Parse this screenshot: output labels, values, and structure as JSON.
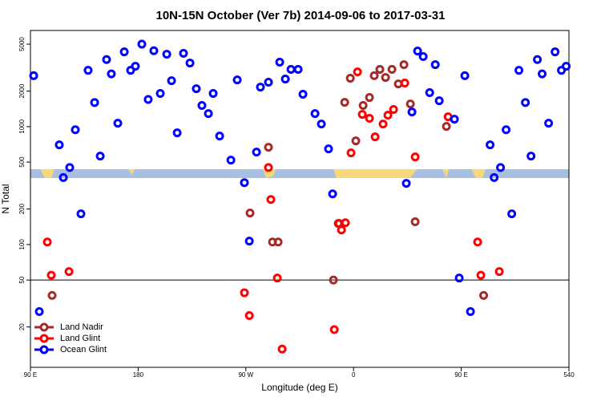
{
  "chart_data": {
    "type": "scatter",
    "title": "10N-15N October (Ver 7b)   2014-09-06 to 2017-03-31",
    "x_label": "Longitude (deg E)",
    "y_label": "N Total",
    "xlim": [
      90,
      540
    ],
    "xticks": [
      {
        "value": 90,
        "label": "90 E"
      },
      180,
      {
        "value": 270,
        "label": "90 W"
      },
      {
        "value": 360,
        "label": "0"
      },
      {
        "value": 450,
        "label": "90 E"
      },
      540
    ],
    "ylim": [
      9.1,
      6530
    ],
    "log_y": true,
    "yticks": [
      20,
      50,
      100,
      200,
      500,
      1000,
      2000,
      5000
    ],
    "hline": 50,
    "legend": "lower left",
    "series": [
      {
        "name": "Land Nadir",
        "color": "#a52a2a",
        "x": [
          108.1,
          273.5,
          288.9,
          292.3,
          297.0,
          343.2,
          347.2,
          352.6,
          357.3,
          361.9,
          368.0,
          373.3,
          377.3,
          382.0,
          386.7,
          392.1,
          397.4,
          402.1,
          407.5,
          411.5,
          437.6,
          468.7
        ],
        "values": [
          37,
          185,
          668,
          105,
          105,
          50,
          151,
          1606,
          2570,
          757,
          1510,
          1765,
          2700,
          3055,
          2610,
          3055,
          2300,
          3350,
          1557,
          156,
          1004,
          37
        ]
      },
      {
        "name": "Land Glint",
        "color": "#ff0000",
        "x": [
          104.1,
          107.4,
          122.2,
          268.8,
          272.9,
          288.9,
          290.9,
          296.3,
          300.3,
          343.9,
          347.9,
          349.9,
          353.2,
          357.9,
          363.3,
          367.3,
          373.3,
          378.0,
          384.7,
          388.7,
          393.4,
          402.8,
          411.5,
          439.0,
          463.7,
          466.4,
          481.8
        ],
        "values": [
          105,
          55,
          59,
          39,
          25,
          450,
          241,
          52,
          13,
          19,
          151,
          133,
          153,
          599,
          2910,
          1270,
          1175,
          819,
          1052,
          1250,
          1396,
          2340,
          553,
          1211,
          105,
          55,
          59
        ]
      },
      {
        "name": "Ocean Glint",
        "color": "#0000ff",
        "x": [
          92.7,
          97.4,
          114.1,
          117.5,
          122.8,
          127.5,
          132.2,
          138.2,
          143.6,
          148.3,
          153.6,
          157.6,
          163.0,
          168.4,
          173.7,
          177.7,
          183.1,
          188.4,
          193.1,
          198.5,
          203.9,
          207.9,
          212.6,
          217.9,
          223.3,
          228.6,
          233.3,
          238.7,
          242.7,
          248.1,
          257.5,
          262.8,
          268.8,
          272.9,
          278.9,
          282.2,
          288.9,
          298.3,
          303.0,
          307.7,
          313.7,
          317.7,
          327.8,
          333.1,
          339.1,
          342.5,
          404.1,
          408.8,
          413.5,
          418.2,
          423.6,
          428.3,
          431.6,
          444.3,
          448.3,
          453.0,
          457.7,
          474.1,
          477.5,
          482.8,
          487.5,
          492.2,
          498.2,
          503.6,
          508.3,
          513.6,
          517.6,
          523.0,
          528.4,
          533.7,
          537.7
        ],
        "values": [
          2700,
          27,
          700,
          370,
          450,
          940,
          182,
          3000,
          1600,
          562,
          3700,
          2800,
          1069,
          4300,
          3000,
          3250,
          5000,
          1700,
          4400,
          1910,
          4110,
          2450,
          885,
          4180,
          3460,
          2096,
          1510,
          1290,
          1910,
          832,
          520,
          2490,
          335,
          107,
          608,
          2163,
          2377,
          3516,
          2530,
          3055,
          3055,
          1880,
          1290,
          1052,
          647,
          269,
          330,
          1331,
          4375,
          3925,
          1940,
          3350,
          1657,
          1156,
          52,
          2700,
          27,
          700,
          370,
          450,
          940,
          182,
          3000,
          1600,
          562,
          3700,
          2800,
          1069,
          4300,
          3000,
          3250
        ]
      }
    ]
  }
}
